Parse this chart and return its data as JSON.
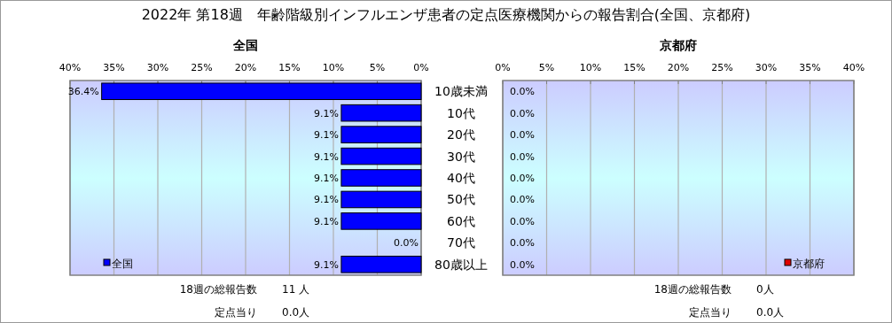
{
  "chart_data": [
    {
      "type": "bar",
      "orientation": "horizontal",
      "title": "2022年 第18週　年齢階級別インフルエンザ患者の定点医療機関からの報告割合(全国、京都府)",
      "subtitle": "全国",
      "categories": [
        "10歳未満",
        "10代",
        "20代",
        "30代",
        "40代",
        "50代",
        "60代",
        "70代",
        "80歳以上"
      ],
      "series": [
        {
          "name": "全国",
          "color": "#0000ff",
          "values": [
            36.4,
            9.1,
            9.1,
            9.1,
            9.1,
            9.1,
            9.1,
            0.0,
            9.1
          ],
          "value_labels": [
            "36.4%",
            "9.1%",
            "9.1%",
            "9.1%",
            "9.1%",
            "9.1%",
            "9.1%",
            "0.0%",
            "9.1%"
          ]
        }
      ],
      "xlim": [
        40,
        0
      ],
      "xticks": [
        {
          "value": 40,
          "label": "40%"
        },
        {
          "value": 35,
          "label": "35%"
        },
        {
          "value": 30,
          "label": "30%"
        },
        {
          "value": 25,
          "label": "25%"
        },
        {
          "value": 20,
          "label": "20%"
        },
        {
          "value": 15,
          "label": "15%"
        },
        {
          "value": 10,
          "label": "10%"
        },
        {
          "value": 5,
          "label": "5%"
        },
        {
          "value": 0,
          "label": "0%"
        }
      ],
      "grid": "x",
      "legend": "bottom left",
      "annotations": [
        "18週の総報告数",
        "11 人",
        "定点当り",
        "0.0人"
      ]
    },
    {
      "type": "bar",
      "orientation": "horizontal",
      "title": "京都府",
      "categories": [
        "10歳未満",
        "10代",
        "20代",
        "30代",
        "40代",
        "50代",
        "60代",
        "70代",
        "80歳以上"
      ],
      "series": [
        {
          "name": "京都府",
          "color": "#e00000",
          "values": [
            0.0,
            0.0,
            0.0,
            0.0,
            0.0,
            0.0,
            0.0,
            0.0,
            0.0
          ],
          "value_labels": [
            "0.0%",
            "0.0%",
            "0.0%",
            "0.0%",
            "0.0%",
            "0.0%",
            "0.0%",
            "0.0%",
            "0.0%"
          ]
        }
      ],
      "xlim": [
        0,
        40
      ],
      "xticks": [
        {
          "value": 0,
          "label": "0%"
        },
        {
          "value": 5,
          "label": "5%"
        },
        {
          "value": 10,
          "label": "10%"
        },
        {
          "value": 15,
          "label": "15%"
        },
        {
          "value": 20,
          "label": "20%"
        },
        {
          "value": 25,
          "label": "25%"
        },
        {
          "value": 30,
          "label": "30%"
        },
        {
          "value": 35,
          "label": "35%"
        },
        {
          "value": 40,
          "label": "40%"
        }
      ],
      "tick_labels": "x",
      "grid": "x",
      "legend": "bottom right",
      "annotations": [
        "18週の総報告数",
        "0人",
        "定点当り",
        "0.0人"
      ]
    }
  ]
}
